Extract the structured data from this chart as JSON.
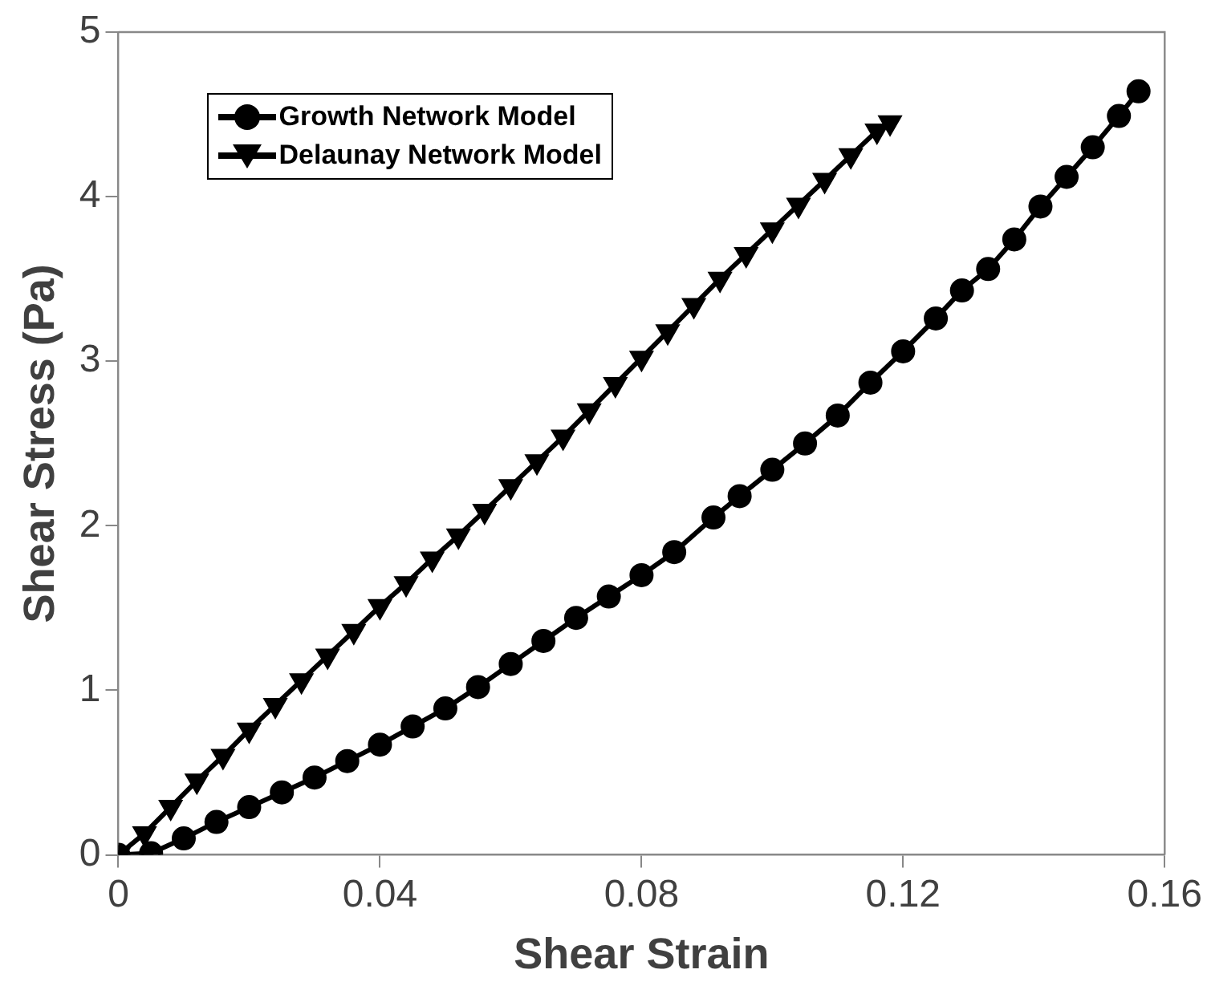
{
  "chart_data": {
    "type": "line",
    "xlabel": "Shear Strain",
    "ylabel": "Shear Stress (Pa)",
    "xlim": [
      0,
      0.16
    ],
    "xticks": [
      0,
      0.04,
      0.08,
      0.12,
      0.16
    ],
    "ylim": [
      0,
      5
    ],
    "yticks": [
      0,
      1,
      2,
      3,
      4,
      5
    ],
    "grid": false,
    "legend": "top left",
    "line_style": "solid",
    "series": [
      {
        "name": "Growth Network Model",
        "color": "#000000",
        "marker": "circle",
        "x": [
          0,
          0.005,
          0.01,
          0.015,
          0.02,
          0.025,
          0.03,
          0.035,
          0.04,
          0.045,
          0.05,
          0.055,
          0.06,
          0.065,
          0.07,
          0.075,
          0.08,
          0.085,
          0.091,
          0.095,
          0.1,
          0.105,
          0.11,
          0.115,
          0.12,
          0.125,
          0.129,
          0.133,
          0.137,
          0.141,
          0.145,
          0.149,
          0.153,
          0.156
        ],
        "values": [
          0,
          0.01,
          0.1,
          0.2,
          0.29,
          0.38,
          0.47,
          0.57,
          0.67,
          0.78,
          0.89,
          1.02,
          1.16,
          1.3,
          1.44,
          1.57,
          1.7,
          1.84,
          2.05,
          2.18,
          2.34,
          2.5,
          2.67,
          2.87,
          3.06,
          3.26,
          3.43,
          3.56,
          3.74,
          3.94,
          4.12,
          4.3,
          4.49,
          4.64
        ]
      },
      {
        "name": "Delaunay Network Model",
        "color": "#000000",
        "marker": "triangle",
        "x": [
          0,
          0.004,
          0.008,
          0.012,
          0.016,
          0.02,
          0.024,
          0.028,
          0.032,
          0.036,
          0.04,
          0.044,
          0.048,
          0.052,
          0.056,
          0.06,
          0.064,
          0.068,
          0.072,
          0.076,
          0.08,
          0.084,
          0.088,
          0.092,
          0.096,
          0.1,
          0.104,
          0.108,
          0.112,
          0.116,
          0.118
        ],
        "values": [
          0,
          0.13,
          0.29,
          0.45,
          0.6,
          0.76,
          0.91,
          1.06,
          1.21,
          1.36,
          1.51,
          1.65,
          1.8,
          1.94,
          2.09,
          2.24,
          2.39,
          2.54,
          2.7,
          2.86,
          3.02,
          3.18,
          3.34,
          3.5,
          3.65,
          3.8,
          3.95,
          4.1,
          4.25,
          4.4,
          4.45
        ]
      }
    ]
  }
}
